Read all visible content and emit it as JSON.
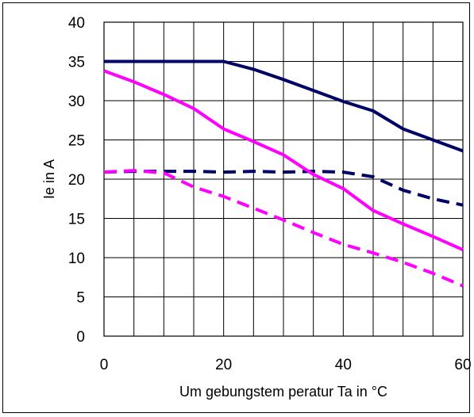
{
  "chart_data": {
    "type": "line",
    "title": "",
    "xlabel": "Um gebungstem peratur Ta in °C",
    "ylabel": "Ie in A",
    "xlim": [
      0,
      60
    ],
    "ylim": [
      0,
      40
    ],
    "x_ticks": [
      0,
      20,
      40,
      60
    ],
    "y_ticks": [
      0,
      5,
      10,
      15,
      20,
      25,
      30,
      35,
      40
    ],
    "x_minor_step": 5,
    "grid": true,
    "legend": "none",
    "series": [
      {
        "color": "#000066",
        "style": "solid",
        "x": [
          0,
          5,
          10,
          15,
          20,
          25,
          30,
          35,
          40,
          45,
          50,
          55,
          60
        ],
        "values": [
          35,
          35,
          35,
          35,
          35,
          34,
          32.7,
          31.3,
          29.9,
          28.7,
          26.4,
          25,
          23.6
        ]
      },
      {
        "color": "#000066",
        "style": "dashed",
        "x": [
          0,
          5,
          10,
          15,
          20,
          25,
          30,
          35,
          40,
          45,
          50,
          55,
          60
        ],
        "values": [
          20.9,
          21,
          21,
          21,
          20.9,
          21,
          20.9,
          21,
          20.9,
          20.3,
          18.6,
          17.5,
          16.7
        ]
      },
      {
        "color": "#ff00ff",
        "style": "solid",
        "x": [
          0,
          5,
          10,
          15,
          20,
          25,
          30,
          35,
          40,
          45,
          50,
          55,
          60
        ],
        "values": [
          33.8,
          32.4,
          30.8,
          29,
          26.4,
          24.8,
          23.1,
          20.6,
          18.8,
          16,
          14.3,
          12.7,
          11
        ]
      },
      {
        "color": "#ff00ff",
        "style": "dashed",
        "x": [
          0,
          5,
          10,
          15,
          20,
          25,
          30,
          35,
          40,
          45,
          50,
          55,
          60
        ],
        "values": [
          20.9,
          21.1,
          20.8,
          19,
          17.8,
          16.3,
          14.8,
          13.2,
          11.7,
          10.6,
          9.4,
          8,
          6.4
        ]
      }
    ]
  }
}
